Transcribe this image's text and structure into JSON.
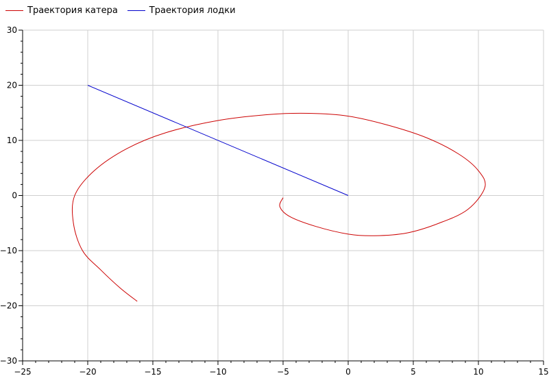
{
  "chart_data": {
    "type": "line",
    "title": "",
    "xlabel": "",
    "ylabel": "",
    "xlim": [
      -25,
      15
    ],
    "ylim": [
      -30,
      30
    ],
    "x_ticks": [
      -25,
      -20,
      -15,
      -10,
      -5,
      0,
      5,
      10,
      15
    ],
    "y_ticks": [
      -30,
      -20,
      -10,
      0,
      10,
      20,
      30
    ],
    "grid": true,
    "legend_position": "top-left",
    "series": [
      {
        "name": "Траектория катера",
        "color": "#cc0000",
        "points": [
          [
            -5.0,
            -0.4
          ],
          [
            -5.25,
            -2.0
          ],
          [
            -4.5,
            -3.8
          ],
          [
            -2.5,
            -5.6
          ],
          [
            0.0,
            -7.0
          ],
          [
            2.0,
            -7.3
          ],
          [
            4.5,
            -6.8
          ],
          [
            7.0,
            -5.0
          ],
          [
            9.2,
            -2.5
          ],
          [
            10.5,
            1.5
          ],
          [
            10.0,
            4.5
          ],
          [
            8.5,
            7.5
          ],
          [
            6.0,
            10.5
          ],
          [
            3.0,
            12.8
          ],
          [
            0.0,
            14.4
          ],
          [
            -3.0,
            14.9
          ],
          [
            -6.0,
            14.7
          ],
          [
            -10.0,
            13.6
          ],
          [
            -14.0,
            11.4
          ],
          [
            -17.0,
            8.5
          ],
          [
            -19.5,
            4.5
          ],
          [
            -21.0,
            0.0
          ],
          [
            -21.1,
            -5.0
          ],
          [
            -20.4,
            -10.0
          ],
          [
            -19.0,
            -13.5
          ],
          [
            -17.5,
            -16.8
          ],
          [
            -16.2,
            -19.2
          ]
        ]
      },
      {
        "name": "Траектория лодки",
        "color": "#0000cc",
        "points": [
          [
            -20,
            20
          ],
          [
            0,
            0
          ]
        ]
      }
    ]
  }
}
